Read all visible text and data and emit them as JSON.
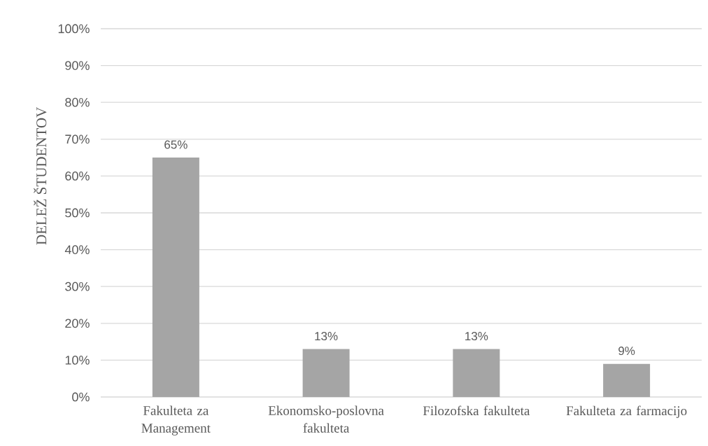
{
  "chart_data": {
    "type": "bar",
    "ylabel": "DELEŽ ŠTUDENTOV",
    "categories": [
      "Fakulteta za Management",
      "Ekonomsko-poslovna fakulteta",
      "Filozofska fakulteta",
      "Fakulteta za farmacijo"
    ],
    "values": [
      65,
      13,
      13,
      9
    ],
    "value_labels": [
      "65%",
      "13%",
      "13%",
      "9%"
    ],
    "color": "#a5a5a5",
    "ylim": [
      0,
      100
    ],
    "yticks": [
      {
        "value": 0,
        "label": "0%"
      },
      {
        "value": 10,
        "label": "10%"
      },
      {
        "value": 20,
        "label": "20%"
      },
      {
        "value": 30,
        "label": "30%"
      },
      {
        "value": 40,
        "label": "40%"
      },
      {
        "value": 50,
        "label": "50%"
      },
      {
        "value": 60,
        "label": "60%"
      },
      {
        "value": 70,
        "label": "70%"
      },
      {
        "value": 80,
        "label": "80%"
      },
      {
        "value": 90,
        "label": "90%"
      },
      {
        "value": 100,
        "label": "100%"
      }
    ],
    "grid": "y"
  }
}
